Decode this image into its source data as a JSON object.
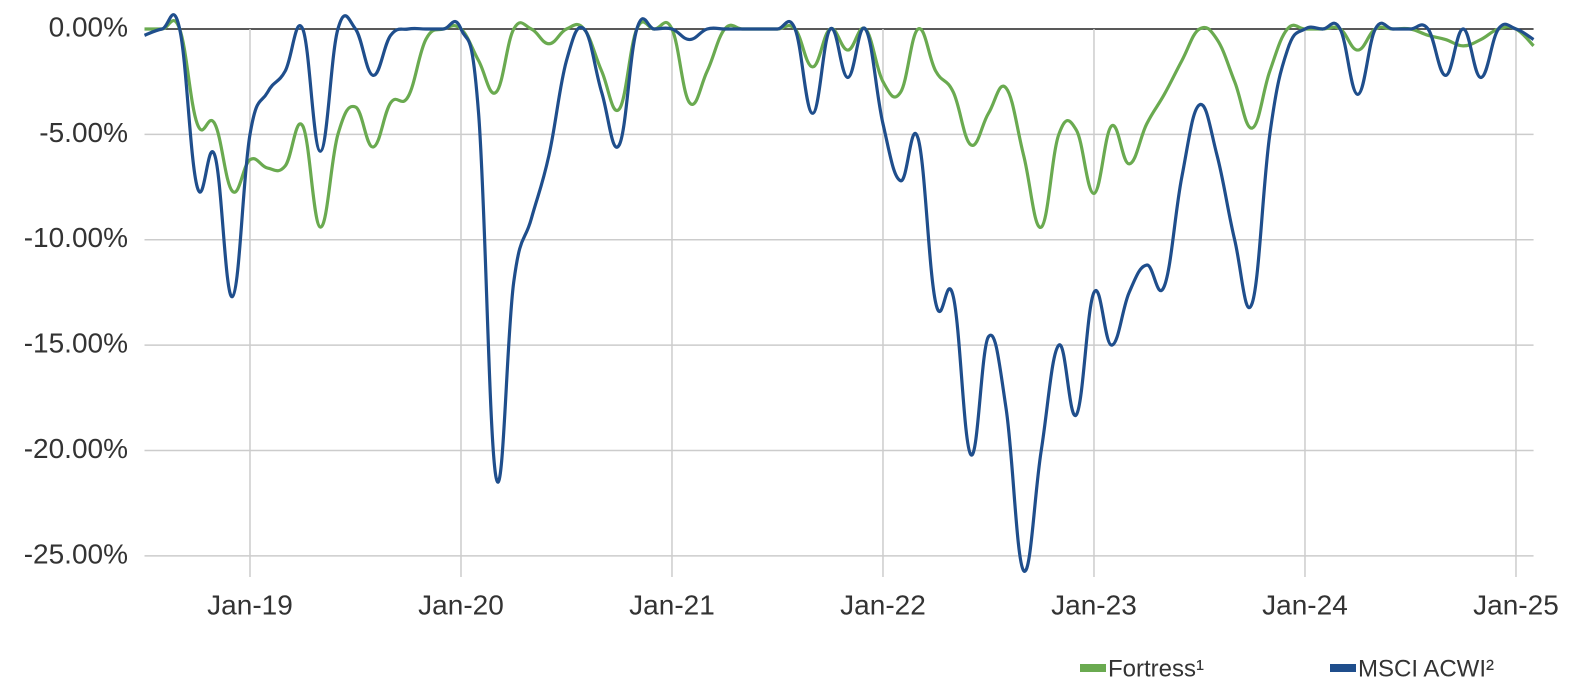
{
  "chart_data": {
    "type": "line",
    "x": [
      "Jul-18",
      "Aug-18",
      "Sep-18",
      "Oct-18",
      "Nov-18",
      "Dec-18",
      "Jan-19",
      "Feb-19",
      "Mar-19",
      "Apr-19",
      "May-19",
      "Jun-19",
      "Jul-19",
      "Aug-19",
      "Sep-19",
      "Oct-19",
      "Nov-19",
      "Dec-19",
      "Jan-20",
      "Feb-20",
      "Mar-20",
      "Apr-20",
      "May-20",
      "Jun-20",
      "Jul-20",
      "Aug-20",
      "Sep-20",
      "Oct-20",
      "Nov-20",
      "Dec-20",
      "Jan-21",
      "Feb-21",
      "Mar-21",
      "Apr-21",
      "May-21",
      "Jun-21",
      "Jul-21",
      "Aug-21",
      "Sep-21",
      "Oct-21",
      "Nov-21",
      "Dec-21",
      "Jan-22",
      "Feb-22",
      "Mar-22",
      "Apr-22",
      "May-22",
      "Jun-22",
      "Jul-22",
      "Aug-22",
      "Sep-22",
      "Oct-22",
      "Nov-22",
      "Dec-22",
      "Jan-23",
      "Feb-23",
      "Mar-23",
      "Apr-23",
      "May-23",
      "Jun-23",
      "Jul-23",
      "Aug-23",
      "Sep-23",
      "Oct-23",
      "Nov-23",
      "Dec-23",
      "Jan-24",
      "Feb-24",
      "Mar-24",
      "Apr-24",
      "May-24",
      "Jun-24",
      "Jul-24",
      "Aug-24",
      "Sep-24",
      "Oct-24",
      "Nov-24",
      "Dec-24",
      "Jan-25",
      "Feb-25"
    ],
    "series": [
      {
        "name": "Fortress¹",
        "color": "#6aaa50",
        "values": [
          0,
          0,
          0,
          -4.5,
          -4.5,
          -7.7,
          -6.2,
          -6.6,
          -6.5,
          -4.6,
          -9.4,
          -5,
          -3.7,
          -5.6,
          -3.5,
          -3.2,
          -0.5,
          0,
          0,
          -1.5,
          -3,
          0,
          0,
          -0.7,
          0,
          0,
          -2,
          -3.8,
          0,
          0,
          0,
          -3.5,
          -2,
          0,
          0,
          0,
          0,
          0,
          -1.8,
          0,
          -1,
          0,
          -2.5,
          -3,
          0,
          -2,
          -3,
          -5.5,
          -4,
          -2.8,
          -6,
          -9.4,
          -5,
          -4.8,
          -7.8,
          -4.6,
          -6.4,
          -4.5,
          -3.1,
          -1.5,
          0,
          -0.5,
          -2.5,
          -4.7,
          -2,
          0,
          0,
          0,
          0,
          -1,
          0,
          0,
          0,
          -0.3,
          -0.5,
          -0.8,
          -0.5,
          0,
          0,
          -0.8
        ]
      },
      {
        "name": "MSCI ACWI²",
        "color": "#1f4e8c",
        "values": [
          -0.3,
          0,
          0,
          -7.5,
          -6,
          -12.7,
          -5,
          -3,
          -2,
          0,
          -5.8,
          0,
          0,
          -2.2,
          -0.3,
          0,
          0,
          0,
          0,
          -4,
          -21.3,
          -12,
          -9,
          -6,
          -1.5,
          0,
          -3,
          -5.5,
          0,
          0,
          0,
          -0.5,
          0,
          0,
          0,
          0,
          0,
          0,
          -4,
          0,
          -2.3,
          0,
          -4.5,
          -7.2,
          -5.2,
          -13,
          -12.7,
          -20.2,
          -14.6,
          -18,
          -25.7,
          -20,
          -15,
          -18.3,
          -12.5,
          -15,
          -12.5,
          -11.2,
          -12.2,
          -7,
          -3.6,
          -6,
          -10,
          -13,
          -5,
          -1,
          0,
          0,
          0,
          -3.1,
          0,
          0,
          0,
          0,
          -2.2,
          0,
          -2.3,
          0,
          0,
          -0.5
        ]
      }
    ],
    "xticks": [
      "Jan-19",
      "Jan-20",
      "Jan-21",
      "Jan-22",
      "Jan-23",
      "Jan-24",
      "Jan-25"
    ],
    "ylim": [
      -26,
      0
    ],
    "yticks": [
      {
        "value": 0,
        "label": "0.00%"
      },
      {
        "value": -5,
        "label": "-5.00%"
      },
      {
        "value": -10,
        "label": "-10.00%"
      },
      {
        "value": -15,
        "label": "-15.00%"
      },
      {
        "value": -20,
        "label": "-20.00%"
      },
      {
        "value": -25,
        "label": "-25.00%"
      }
    ],
    "grid": true,
    "legend": "bottom-right"
  }
}
